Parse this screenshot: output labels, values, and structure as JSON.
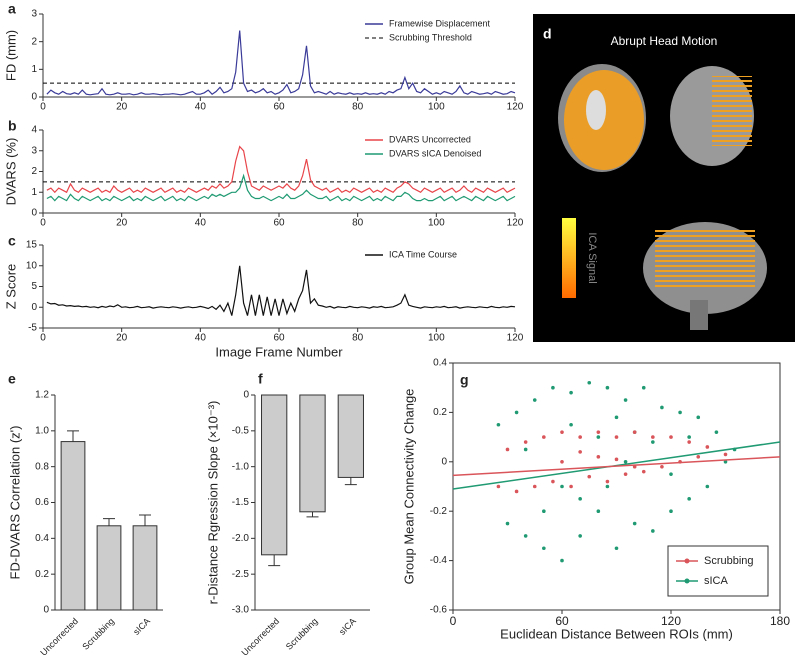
{
  "chart_data": [
    {
      "type": "line",
      "panel": "a",
      "y_label": "FD (mm)",
      "xlim": [
        0,
        120
      ],
      "xticks": [
        0,
        20,
        40,
        60,
        80,
        100,
        120
      ],
      "ylim": [
        0,
        3
      ],
      "yticks": [
        0,
        1,
        2,
        3
      ],
      "threshold": 0.5,
      "threshold_label": "Scrubbing Threshold",
      "legend": "upper right",
      "x": [
        1,
        2,
        3,
        4,
        5,
        6,
        7,
        8,
        9,
        10,
        11,
        12,
        13,
        14,
        15,
        16,
        17,
        18,
        19,
        20,
        21,
        22,
        23,
        24,
        25,
        26,
        27,
        28,
        29,
        30,
        31,
        32,
        33,
        34,
        35,
        36,
        37,
        38,
        39,
        40,
        41,
        42,
        43,
        44,
        45,
        46,
        47,
        48,
        49,
        50,
        51,
        52,
        53,
        54,
        55,
        56,
        57,
        58,
        59,
        60,
        61,
        62,
        63,
        64,
        65,
        66,
        67,
        68,
        69,
        70,
        71,
        72,
        73,
        74,
        75,
        76,
        77,
        78,
        79,
        80,
        81,
        82,
        83,
        84,
        85,
        86,
        87,
        88,
        89,
        90,
        91,
        92,
        93,
        94,
        95,
        96,
        97,
        98,
        99,
        100,
        101,
        102,
        103,
        104,
        105,
        106,
        107,
        108,
        109,
        110,
        111,
        112,
        113,
        114,
        115,
        116,
        117,
        118,
        119,
        120
      ],
      "series": [
        {
          "name": "Framewise Displacement",
          "color": "#3a3a99",
          "values": [
            0.1,
            0.25,
            0.15,
            0.1,
            0.2,
            0.12,
            0.1,
            0.15,
            0.1,
            0.25,
            0.1,
            0.08,
            0.1,
            0.12,
            0.3,
            0.1,
            0.08,
            0.1,
            0.15,
            0.1,
            0.1,
            0.12,
            0.08,
            0.1,
            0.15,
            0.1,
            0.1,
            0.12,
            0.1,
            0.08,
            0.1,
            0.1,
            0.12,
            0.1,
            0.08,
            0.1,
            0.15,
            0.2,
            0.1,
            0.1,
            0.15,
            0.25,
            0.1,
            0.2,
            0.35,
            0.15,
            0.2,
            0.3,
            0.9,
            2.4,
            0.5,
            0.2,
            0.25,
            0.15,
            0.2,
            0.3,
            0.15,
            0.2,
            0.1,
            0.15,
            0.25,
            0.45,
            0.15,
            0.2,
            0.3,
            0.8,
            1.85,
            0.4,
            0.15,
            0.2,
            0.15,
            0.1,
            0.2,
            0.1,
            0.15,
            0.12,
            0.1,
            0.15,
            0.1,
            0.12,
            0.1,
            0.15,
            0.1,
            0.12,
            0.1,
            0.15,
            0.1,
            0.2,
            0.15,
            0.25,
            0.3,
            0.7,
            0.3,
            0.5,
            0.2,
            0.15,
            0.3,
            0.2,
            0.1,
            0.15,
            0.1,
            0.2,
            0.15,
            0.1,
            0.2,
            0.4,
            0.15,
            0.1,
            0.2,
            0.15,
            0.1,
            0.12,
            0.15,
            0.1,
            0.2,
            0.15,
            0.1,
            0.12,
            0.2,
            0.15
          ]
        }
      ]
    },
    {
      "type": "line",
      "panel": "b",
      "y_label": "DVARS (%)",
      "xlim": [
        0,
        120
      ],
      "xticks": [
        0,
        20,
        40,
        60,
        80,
        100,
        120
      ],
      "ylim": [
        0,
        4
      ],
      "yticks": [
        0,
        1,
        2,
        3,
        4
      ],
      "threshold": 1.5,
      "legend": "upper right",
      "x": [
        1,
        2,
        3,
        4,
        5,
        6,
        7,
        8,
        9,
        10,
        11,
        12,
        13,
        14,
        15,
        16,
        17,
        18,
        19,
        20,
        21,
        22,
        23,
        24,
        25,
        26,
        27,
        28,
        29,
        30,
        31,
        32,
        33,
        34,
        35,
        36,
        37,
        38,
        39,
        40,
        41,
        42,
        43,
        44,
        45,
        46,
        47,
        48,
        49,
        50,
        51,
        52,
        53,
        54,
        55,
        56,
        57,
        58,
        59,
        60,
        61,
        62,
        63,
        64,
        65,
        66,
        67,
        68,
        69,
        70,
        71,
        72,
        73,
        74,
        75,
        76,
        77,
        78,
        79,
        80,
        81,
        82,
        83,
        84,
        85,
        86,
        87,
        88,
        89,
        90,
        91,
        92,
        93,
        94,
        95,
        96,
        97,
        98,
        99,
        100,
        101,
        102,
        103,
        104,
        105,
        106,
        107,
        108,
        109,
        110,
        111,
        112,
        113,
        114,
        115,
        116,
        117,
        118,
        119,
        120
      ],
      "series": [
        {
          "name": "DVARS Uncorrected",
          "color": "#e8454a",
          "values": [
            1.1,
            1.2,
            1.0,
            1.2,
            1.1,
            1.0,
            1.4,
            1.1,
            1.0,
            1.2,
            1.1,
            1.0,
            1.1,
            1.2,
            1.0,
            1.1,
            1.0,
            1.3,
            1.1,
            1.0,
            1.1,
            1.2,
            1.0,
            1.1,
            1.0,
            1.2,
            1.1,
            1.0,
            1.1,
            1.2,
            1.0,
            1.1,
            1.2,
            1.0,
            1.1,
            1.0,
            1.2,
            1.1,
            1.0,
            1.1,
            1.2,
            1.1,
            1.3,
            1.2,
            1.4,
            1.2,
            1.3,
            1.5,
            2.5,
            3.2,
            3.0,
            2.0,
            1.3,
            1.2,
            1.1,
            1.3,
            1.2,
            1.1,
            1.2,
            1.3,
            1.2,
            1.4,
            1.2,
            1.1,
            1.3,
            1.8,
            2.6,
            1.6,
            1.3,
            1.2,
            1.1,
            1.2,
            1.0,
            1.1,
            1.2,
            1.0,
            1.1,
            1.0,
            1.2,
            1.1,
            1.0,
            1.1,
            1.2,
            1.0,
            1.1,
            1.0,
            1.2,
            1.1,
            1.0,
            1.2,
            1.3,
            1.5,
            1.4,
            1.2,
            1.1,
            1.0,
            1.2,
            1.1,
            1.0,
            1.1,
            1.2,
            1.0,
            1.1,
            1.2,
            1.0,
            1.1,
            1.3,
            1.1,
            1.0,
            1.2,
            1.1,
            1.0,
            1.2,
            1.1,
            1.0,
            1.1,
            1.2,
            1.0,
            1.1,
            1.2
          ]
        },
        {
          "name": "DVARS sICA Denoised",
          "color": "#1f9a72",
          "values": [
            0.7,
            0.8,
            0.6,
            0.8,
            0.7,
            0.6,
            0.9,
            0.7,
            0.6,
            0.8,
            0.7,
            0.6,
            0.7,
            0.8,
            0.6,
            0.7,
            0.6,
            0.8,
            0.7,
            0.6,
            0.7,
            0.8,
            0.6,
            0.7,
            0.6,
            0.8,
            0.7,
            0.6,
            0.7,
            0.8,
            0.6,
            0.7,
            0.8,
            0.6,
            0.7,
            0.6,
            0.8,
            0.7,
            0.6,
            0.7,
            0.8,
            0.7,
            0.9,
            0.8,
            0.9,
            0.8,
            0.9,
            1.0,
            1.0,
            1.2,
            1.8,
            1.1,
            0.8,
            0.7,
            0.7,
            0.8,
            0.7,
            0.6,
            0.7,
            0.8,
            0.7,
            0.9,
            0.7,
            0.7,
            0.8,
            0.9,
            1.1,
            0.9,
            0.8,
            0.7,
            0.7,
            0.8,
            0.6,
            0.7,
            0.8,
            0.6,
            0.7,
            0.6,
            0.8,
            0.7,
            0.6,
            0.7,
            0.8,
            0.6,
            0.7,
            0.6,
            0.8,
            0.7,
            0.6,
            0.8,
            0.8,
            1.0,
            0.9,
            0.7,
            0.6,
            0.6,
            0.7,
            0.6,
            0.6,
            0.7,
            0.8,
            0.6,
            0.7,
            0.8,
            0.6,
            0.7,
            0.8,
            0.7,
            0.6,
            0.8,
            0.7,
            0.6,
            0.8,
            0.7,
            0.6,
            0.7,
            0.8,
            0.6,
            0.7,
            0.8
          ]
        }
      ]
    },
    {
      "type": "line",
      "panel": "c",
      "y_label": "Z Score",
      "x_label": "Image Frame Number",
      "xlim": [
        0,
        120
      ],
      "xticks": [
        0,
        20,
        40,
        60,
        80,
        100,
        120
      ],
      "ylim": [
        -5,
        15
      ],
      "yticks": [
        -5,
        0,
        5,
        10,
        15
      ],
      "legend": "upper right",
      "x": [
        1,
        2,
        3,
        4,
        5,
        6,
        7,
        8,
        9,
        10,
        11,
        12,
        13,
        14,
        15,
        16,
        17,
        18,
        19,
        20,
        21,
        22,
        23,
        24,
        25,
        26,
        27,
        28,
        29,
        30,
        31,
        32,
        33,
        34,
        35,
        36,
        37,
        38,
        39,
        40,
        41,
        42,
        43,
        44,
        45,
        46,
        47,
        48,
        49,
        50,
        51,
        52,
        53,
        54,
        55,
        56,
        57,
        58,
        59,
        60,
        61,
        62,
        63,
        64,
        65,
        66,
        67,
        68,
        69,
        70,
        71,
        72,
        73,
        74,
        75,
        76,
        77,
        78,
        79,
        80,
        81,
        82,
        83,
        84,
        85,
        86,
        87,
        88,
        89,
        90,
        91,
        92,
        93,
        94,
        95,
        96,
        97,
        98,
        99,
        100,
        101,
        102,
        103,
        104,
        105,
        106,
        107,
        108,
        109,
        110,
        111,
        112,
        113,
        114,
        115,
        116,
        117,
        118,
        119,
        120
      ],
      "series": [
        {
          "name": "ICA Time Course",
          "color": "#111111",
          "values": [
            1.2,
            0.8,
            0.9,
            0.5,
            0.6,
            0.3,
            0.4,
            0.2,
            0.3,
            0.1,
            0.2,
            0,
            0.1,
            -0.1,
            0.2,
            0,
            0.3,
            0.1,
            0.6,
            0,
            0.1,
            -0.1,
            0,
            0.2,
            -0.1,
            0,
            0.1,
            -0.2,
            0,
            0.1,
            0,
            -0.1,
            0.1,
            0,
            -0.2,
            0,
            0.1,
            -0.1,
            0,
            0.2,
            0,
            -0.3,
            0.2,
            -0.5,
            0.5,
            -1,
            1,
            -2,
            3,
            10,
            1,
            -2,
            3,
            -2,
            3,
            -2,
            2.5,
            -2,
            2,
            -2,
            2,
            -1.5,
            1,
            -1,
            2,
            4,
            9,
            1,
            2,
            0.5,
            0.3,
            0,
            0.2,
            -0.2,
            0.1,
            0,
            -0.1,
            0.2,
            0,
            -0.1,
            0.1,
            0,
            -0.2,
            0.1,
            0,
            0.2,
            -0.1,
            0,
            0.1,
            0.5,
            1,
            3,
            0.5,
            0.2,
            0,
            -0.2,
            0.1,
            0,
            -0.1,
            0.1,
            0,
            0.2,
            -0.1,
            0,
            0.1,
            -0.2,
            0,
            0.1,
            0,
            -0.1,
            0.1,
            0,
            -0.1,
            0.2,
            0,
            -0.1,
            0.1,
            0,
            0.2,
            0.1
          ]
        }
      ]
    },
    {
      "type": "bar",
      "panel": "e",
      "y_label": "FD-DVARS Correlation (z')",
      "categories": [
        "Uncorrected",
        "Scrubbing",
        "sICA"
      ],
      "values": [
        0.94,
        0.47,
        0.47
      ],
      "errors": [
        0.06,
        0.04,
        0.06
      ],
      "color": "#cccccc",
      "ylim": [
        0,
        1.2
      ],
      "yticks": [
        0,
        0.2,
        0.4,
        0.6,
        0.8,
        {
          "value": 1,
          "label": "1.0"
        },
        1.2
      ]
    },
    {
      "type": "bar",
      "panel": "f",
      "y_label": "r-Distance Rgression Slope (×10⁻³)",
      "categories": [
        "Uncorrected",
        "Scrubbing",
        "sICA"
      ],
      "values": [
        -2.23,
        -1.63,
        -1.15
      ],
      "errors": [
        0.15,
        0.07,
        0.1
      ],
      "color": "#cccccc",
      "ylim": [
        -3,
        0
      ],
      "yticks": [
        0,
        -0.5,
        {
          "value": -1,
          "label": "-1.0"
        },
        -1.5,
        {
          "value": -2,
          "label": "-2.0"
        },
        -2.5,
        {
          "value": -3,
          "label": "-3.0"
        }
      ]
    },
    {
      "type": "scatter",
      "panel": "g",
      "x_label": "Euclidean Distance Between ROIs (mm)",
      "y_label": "Group Mean Connectivity Change",
      "xlim": [
        0,
        180
      ],
      "xticks": [
        0,
        60,
        120,
        180
      ],
      "ylim": [
        -0.6,
        0.4
      ],
      "yticks": [
        -0.6,
        -0.4,
        -0.2,
        0,
        0.2,
        0.4
      ],
      "legend": "lower right",
      "series": [
        {
          "name": "sICA",
          "color": "#1f9a72",
          "x": [
            25,
            30,
            35,
            40,
            45,
            50,
            55,
            60,
            65,
            70,
            75,
            80,
            85,
            90,
            95,
            100,
            105,
            110,
            115,
            120,
            125,
            130,
            135,
            140,
            145,
            150,
            155,
            40,
            60,
            80,
            100,
            120,
            70,
            90,
            110,
            50,
            130,
            85,
            65,
            95
          ],
          "values": [
            0.15,
            -0.25,
            0.2,
            -0.3,
            0.25,
            -0.35,
            0.3,
            -0.4,
            0.28,
            -0.3,
            0.32,
            -0.2,
            0.3,
            -0.35,
            0.25,
            -0.25,
            0.3,
            -0.28,
            0.22,
            -0.2,
            0.2,
            -0.15,
            0.18,
            -0.1,
            0.12,
            0,
            0.05,
            0.05,
            -0.1,
            0.1,
            0.12,
            -0.05,
            -0.15,
            0.18,
            0.08,
            -0.2,
            0.1,
            -0.1,
            0.15,
            0
          ],
          "fit": {
            "x": [
              0,
              180
            ],
            "values": [
              -0.11,
              0.08
            ]
          }
        },
        {
          "name": "Scrubbing",
          "color": "#d9555a",
          "x": [
            25,
            30,
            35,
            40,
            45,
            50,
            55,
            60,
            65,
            70,
            75,
            80,
            85,
            90,
            95,
            100,
            105,
            110,
            115,
            120,
            125,
            130,
            135,
            140,
            150,
            60,
            80,
            100,
            70,
            90
          ],
          "values": [
            -0.1,
            0.05,
            -0.12,
            0.08,
            -0.1,
            0.1,
            -0.08,
            0.12,
            -0.1,
            0.1,
            -0.06,
            0.12,
            -0.08,
            0.1,
            -0.05,
            0.12,
            -0.04,
            0.1,
            -0.02,
            0.1,
            0,
            0.08,
            0.02,
            0.06,
            0.03,
            0,
            0.02,
            -0.02,
            0.04,
            0.01
          ],
          "fit": {
            "x": [
              0,
              180
            ],
            "values": [
              -0.055,
              0.02
            ]
          }
        }
      ]
    }
  ],
  "panel_d": {
    "panel": "d",
    "title": "Abrupt Head Motion",
    "colorbar_label": "ICA Signal"
  }
}
